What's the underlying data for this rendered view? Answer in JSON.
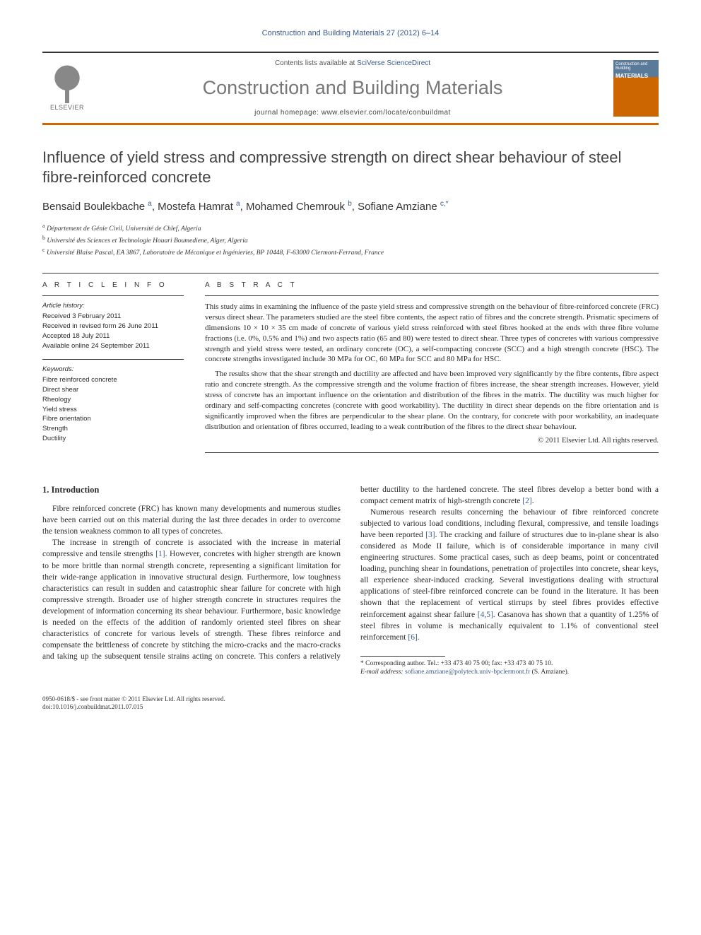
{
  "citation": "Construction and Building Materials 27 (2012) 6–14",
  "header": {
    "publisher": "ELSEVIER",
    "contents_prefix": "Contents lists available at ",
    "contents_link": "SciVerse ScienceDirect",
    "journal_name": "Construction and Building Materials",
    "homepage_prefix": "journal homepage: ",
    "homepage": "www.elsevier.com/locate/conbuildmat",
    "cover_top": "Construction and Building",
    "cover_word": "MATERIALS"
  },
  "title": "Influence of yield stress and compressive strength on direct shear behaviour of steel fibre-reinforced concrete",
  "authors_html": "Bensaid Boulekbache <sup>a</sup>, Mostefa Hamrat <sup>a</sup>, Mohamed Chemrouk <sup>b</sup>, Sofiane Amziane <sup>c,*</sup>",
  "affiliations": [
    {
      "sup": "a",
      "text": "Département de Génie Civil, Université de Chlef, Algeria"
    },
    {
      "sup": "b",
      "text": "Université des Sciences et Technologie Houari Boumediene, Alger, Algeria"
    },
    {
      "sup": "c",
      "text": "Université Blaise Pascal, EA 3867, Laboratoire de Mécanique et Ingénieries, BP 10448, F-63000 Clermont-Ferrand, France"
    }
  ],
  "info": {
    "label": "A R T I C L E   I N F O",
    "history_label": "Article history:",
    "history": [
      "Received 3 February 2011",
      "Received in revised form 26 June 2011",
      "Accepted 18 July 2011",
      "Available online 24 September 2011"
    ],
    "keywords_label": "Keywords:",
    "keywords": [
      "Fibre reinforced concrete",
      "Direct shear",
      "Rheology",
      "Yield stress",
      "Fibre orientation",
      "Strength",
      "Ductility"
    ]
  },
  "abstract": {
    "label": "A B S T R A C T",
    "paragraphs": [
      "This study aims in examining the influence of the paste yield stress and compressive strength on the behaviour of fibre-reinforced concrete (FRC) versus direct shear. The parameters studied are the steel fibre contents, the aspect ratio of fibres and the concrete strength. Prismatic specimens of dimensions 10 × 10 × 35 cm made of concrete of various yield stress reinforced with steel fibres hooked at the ends with three fibre volume fractions (i.e. 0%, 0.5% and 1%) and two aspects ratio (65 and 80) were tested to direct shear. Three types of concretes with various compressive strength and yield stress were tested, an ordinary concrete (OC), a self-compacting concrete (SCC) and a high strength concrete (HSC). The concrete strengths investigated include 30 MPa for OC, 60 MPa for SCC and 80 MPa for HSC.",
      "The results show that the shear strength and ductility are affected and have been improved very significantly by the fibre contents, fibre aspect ratio and concrete strength. As the compressive strength and the volume fraction of fibres increase, the shear strength increases. However, yield stress of concrete has an important influence on the orientation and distribution of the fibres in the matrix. The ductility was much higher for ordinary and self-compacting concretes (concrete with good workability). The ductility in direct shear depends on the fibre orientation and is significantly improved when the fibres are perpendicular to the shear plane. On the contrary, for concrete with poor workability, an inadequate distribution and orientation of fibres occurred, leading to a weak contribution of the fibres to the direct shear behaviour."
    ],
    "copyright": "© 2011 Elsevier Ltd. All rights reserved."
  },
  "body": {
    "heading": "1. Introduction",
    "p1": "Fibre reinforced concrete (FRC) has known many developments and numerous studies have been carried out on this material during the last three decades in order to overcome the tension weakness common to all types of concretes.",
    "p2a": "The increase in strength of concrete is associated with the increase in material compressive and tensile strengths ",
    "ref1": "[1]",
    "p2b": ". However, concretes with higher strength are known to be more brittle than normal strength concrete, representing a significant limitation for their wide-range application in innovative structural design. Furthermore, low toughness characteristics can result in sudden and catastrophic shear failure for concrete with high compressive strength. Broader use of higher strength concrete in structures requires the development of information concerning its shear behaviour. Furthermore, basic knowledge is needed on the effects of the addition of randomly oriented steel fibres on shear characteristics of concrete for various levels of strength. ",
    "p2c": "These fibres reinforce and compensate the brittleness of concrete by stitching the micro-cracks and the macro-cracks and taking up the subsequent tensile strains acting on concrete. This confers a relatively better ductility to the hardened concrete. The steel fibres develop a better bond with a compact cement matrix of high-strength concrete ",
    "ref2": "[2]",
    "p2d": ".",
    "p3a": "Numerous research results concerning the behaviour of fibre reinforced concrete subjected to various load conditions, including flexural, compressive, and tensile loadings have been reported ",
    "ref3": "[3]",
    "p3b": ". The cracking and failure of structures due to in-plane shear is also considered as Mode II failure, which is of considerable importance in many civil engineering structures. Some practical cases, such as deep beams, point or concentrated loading, punching shear in foundations, penetration of projectiles into concrete, shear keys, all experience shear-induced cracking. Several investigations dealing with structural applications of steel-fibre reinforced concrete can be found in the literature. It has been shown that the replacement of vertical stirrups by steel fibres provides effective reinforcement against shear failure ",
    "ref45": "[4,5]",
    "p3c": ". Casanova has shown that a quantity of 1.25% of steel fibres in volume is mechanically equivalent to 1.1% of conventional steel reinforcement ",
    "ref6": "[6]",
    "p3d": "."
  },
  "footnote": {
    "corr": "* Corresponding author. Tel.: +33 473 40 75 00; fax: +33 473 40 75 10.",
    "email_label": "E-mail address: ",
    "email": "sofiane.amziane@polytech.univ-bpclermont.fr",
    "email_who": " (S. Amziane)."
  },
  "footer": {
    "line1": "0950-0618/$ - see front matter © 2011 Elsevier Ltd. All rights reserved.",
    "line2": "doi:10.1016/j.conbuildmat.2011.07.015"
  },
  "colors": {
    "link": "#3a5a8a",
    "accent_rule": "#cc6600",
    "text": "#2a2a2a",
    "journal_gray": "#777777"
  }
}
